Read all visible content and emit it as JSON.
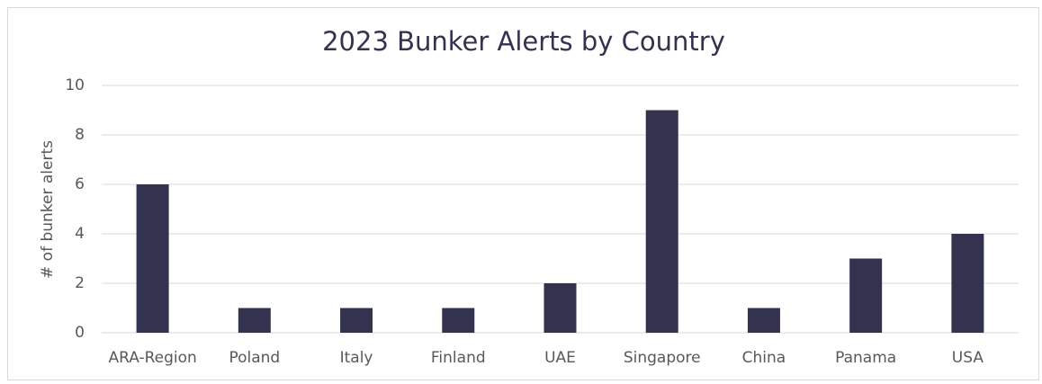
{
  "chart_data": {
    "type": "bar",
    "title": "2023 Bunker Alerts by Country",
    "y_label": "# of bunker alerts",
    "categories": [
      "ARA-Region",
      "Poland",
      "Italy",
      "Finland",
      "UAE",
      "Singapore",
      "China",
      "Panama",
      "USA"
    ],
    "values": [
      6,
      1,
      1,
      1,
      2,
      9,
      1,
      3,
      4
    ],
    "color": "#33334f",
    "ylim": [
      0,
      10
    ],
    "yticks": [
      0,
      2,
      4,
      6,
      8,
      10
    ],
    "grid": true
  }
}
